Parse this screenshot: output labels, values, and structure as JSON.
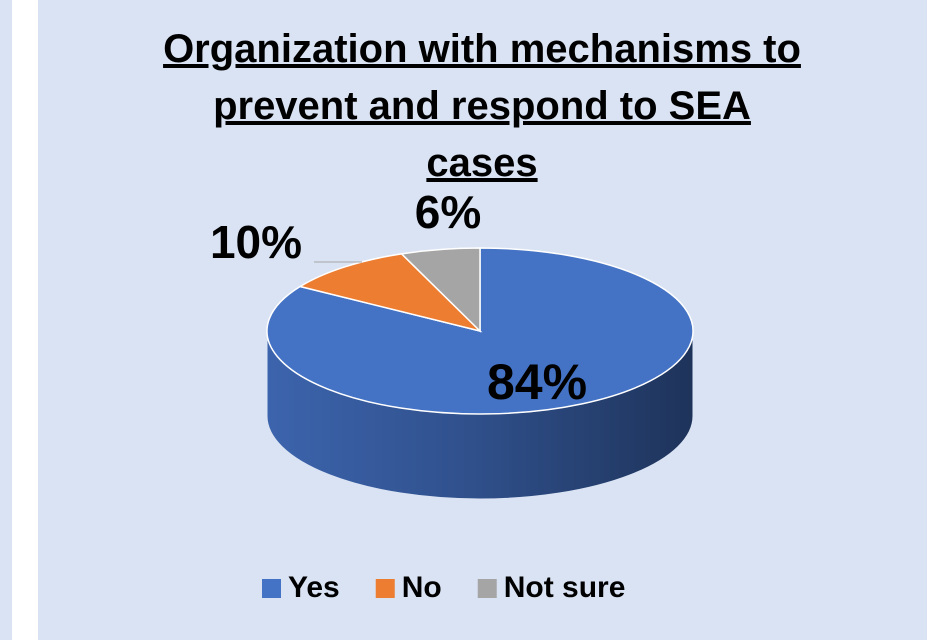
{
  "chart_data": {
    "type": "pie",
    "title": "Organization with mechanisms to prevent and respond to SEA cases",
    "categories": [
      "Yes",
      "No",
      "Not sure"
    ],
    "values": [
      84,
      10,
      6
    ],
    "value_labels": [
      "84%",
      "10%",
      "6%"
    ],
    "colors": [
      "#4472c4",
      "#ed7d31",
      "#a5a5a5"
    ],
    "legend": "bottom"
  }
}
